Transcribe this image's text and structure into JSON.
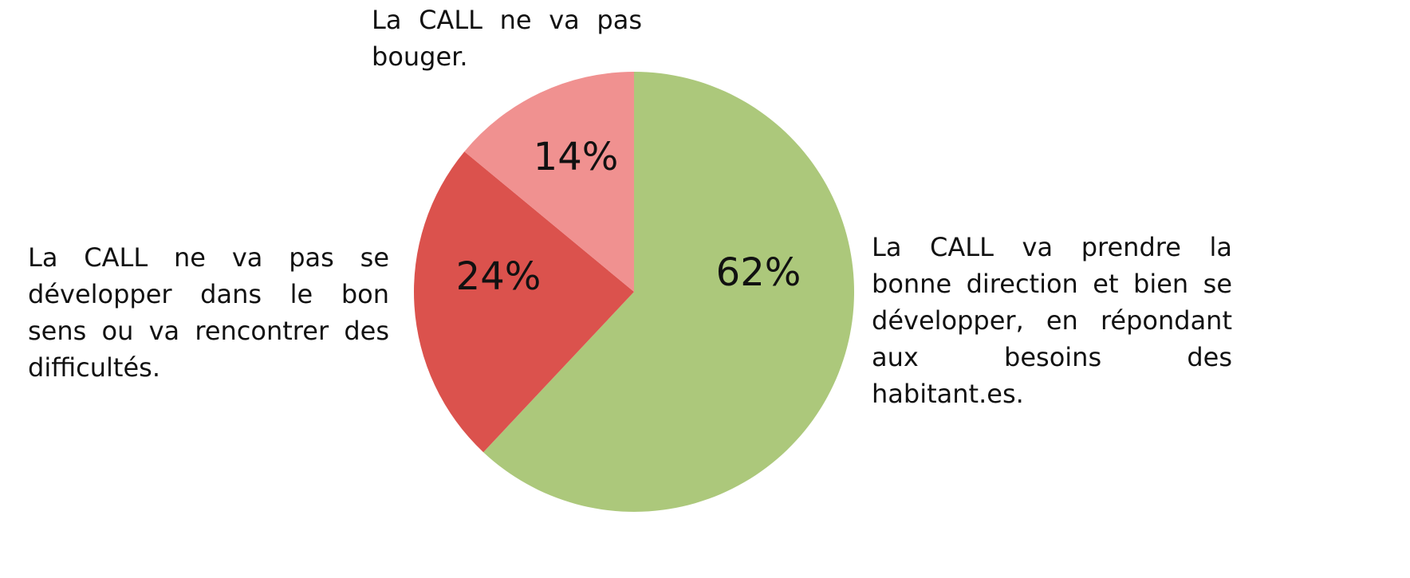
{
  "chart_data": {
    "type": "pie",
    "categories": [
      "La CALL va prendre la bonne direction et bien se développer, en répondant aux besoins des habitant.es.",
      "La CALL ne va pas se développer dans le bon sens ou va rencontrer des difficultés.",
      "La CALL ne va pas bouger."
    ],
    "values": [
      62,
      24,
      14
    ],
    "value_labels": [
      "62%",
      "24%",
      "14%"
    ],
    "colors": [
      "#acc87b",
      "#db524d",
      "#f09190"
    ]
  }
}
